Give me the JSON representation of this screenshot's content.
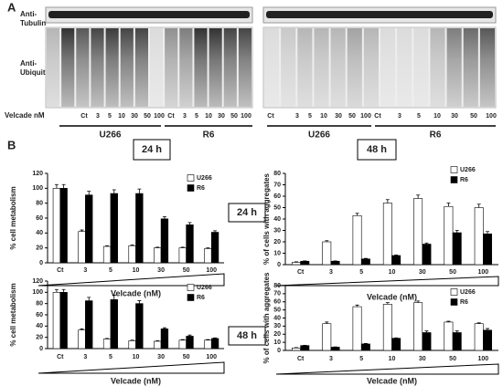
{
  "panel_a": {
    "letter": "A",
    "tubulin_label": [
      "Anti-",
      "Tubulin"
    ],
    "ubiquitin_label": [
      "Anti-",
      "Ubiquitin"
    ],
    "dose_label": "Velcade nM",
    "blots": [
      {
        "lanes": [
          "Ct",
          "3",
          "5",
          "10",
          "30",
          "50",
          "100",
          "Ct",
          "3",
          "5",
          "10",
          "30",
          "50",
          "100"
        ],
        "groups": [
          "U266",
          "R6"
        ]
      },
      {
        "lanes": [
          "Ct",
          "3",
          "5",
          "10",
          "30",
          "50",
          "100",
          "Ct",
          "3",
          "5",
          "10",
          "30",
          "50",
          "100"
        ],
        "groups": [
          "U266",
          "R6"
        ]
      }
    ]
  },
  "panel_b": {
    "letter": "B",
    "headers": [
      "24 h",
      "48 h"
    ]
  },
  "chart_data": [
    {
      "type": "bar",
      "annotation": "24 h",
      "x_label": "Velcade (nM)",
      "y_label": "% cell metabolism",
      "categories": [
        "Ct",
        "3",
        "5",
        "10",
        "30",
        "50",
        "100"
      ],
      "ylim": [
        0,
        120
      ],
      "yticks": [
        0,
        20,
        40,
        60,
        80,
        100,
        120
      ],
      "series": [
        {
          "name": "U266",
          "color": "#ffffff",
          "values": [
            100,
            42,
            22,
            23,
            20,
            20,
            19
          ],
          "errors": [
            5,
            2,
            1,
            1,
            1,
            1,
            1
          ]
        },
        {
          "name": "R6",
          "color": "#000000",
          "values": [
            100,
            91,
            93,
            93,
            59,
            51,
            41
          ],
          "errors": [
            5,
            5,
            5,
            6,
            3,
            3,
            2
          ]
        }
      ]
    },
    {
      "type": "bar",
      "x_label": "Velcade (nM)",
      "y_label": "% of cells with aggregates",
      "categories": [
        "Ct",
        "3",
        "5",
        "10",
        "30",
        "50",
        "100"
      ],
      "ylim": [
        0,
        80
      ],
      "yticks": [
        0,
        10,
        20,
        30,
        40,
        50,
        60,
        70,
        80
      ],
      "series": [
        {
          "name": "U266",
          "color": "#ffffff",
          "values": [
            2,
            20,
            43,
            54,
            58,
            51,
            50
          ],
          "errors": [
            0.5,
            1,
            2,
            3,
            3,
            3,
            3
          ]
        },
        {
          "name": "R6",
          "color": "#000000",
          "values": [
            3,
            3,
            5,
            8,
            18,
            28,
            27
          ],
          "errors": [
            0.3,
            0.3,
            0.5,
            0.5,
            1,
            2,
            2
          ]
        }
      ]
    },
    {
      "type": "bar",
      "annotation": "48 h",
      "x_label": "Velcade (nM)",
      "y_label": "% cell metabolism",
      "categories": [
        "Ct",
        "3",
        "5",
        "10",
        "30",
        "50",
        "100"
      ],
      "ylim": [
        0,
        120
      ],
      "yticks": [
        0,
        20,
        40,
        60,
        80,
        100,
        120
      ],
      "series": [
        {
          "name": "U266",
          "color": "#ffffff",
          "values": [
            100,
            33,
            17,
            14,
            13,
            15,
            15
          ],
          "errors": [
            5,
            2,
            1,
            1,
            1,
            1,
            1
          ]
        },
        {
          "name": "R6",
          "color": "#000000",
          "values": [
            100,
            85,
            87,
            80,
            35,
            22,
            18
          ],
          "errors": [
            5,
            6,
            8,
            5,
            2,
            2,
            1
          ]
        }
      ]
    },
    {
      "type": "bar",
      "x_label": "Velcade (nM)",
      "y_label": "% of cells with aggregates",
      "categories": [
        "Ct",
        "3",
        "5",
        "10",
        "30",
        "50",
        "100"
      ],
      "ylim": [
        0,
        80
      ],
      "yticks": [
        0,
        10,
        20,
        30,
        40,
        50,
        60,
        70,
        80
      ],
      "series": [
        {
          "name": "U266",
          "color": "#ffffff",
          "values": [
            3,
            33,
            54,
            57,
            59,
            35,
            33
          ],
          "errors": [
            0.5,
            2,
            2,
            2,
            2,
            1,
            1
          ]
        },
        {
          "name": "R6",
          "color": "#000000",
          "values": [
            6,
            4,
            8,
            15,
            22,
            22,
            25
          ],
          "errors": [
            0.3,
            0.3,
            0.5,
            0.5,
            2,
            2,
            2
          ]
        }
      ]
    }
  ]
}
